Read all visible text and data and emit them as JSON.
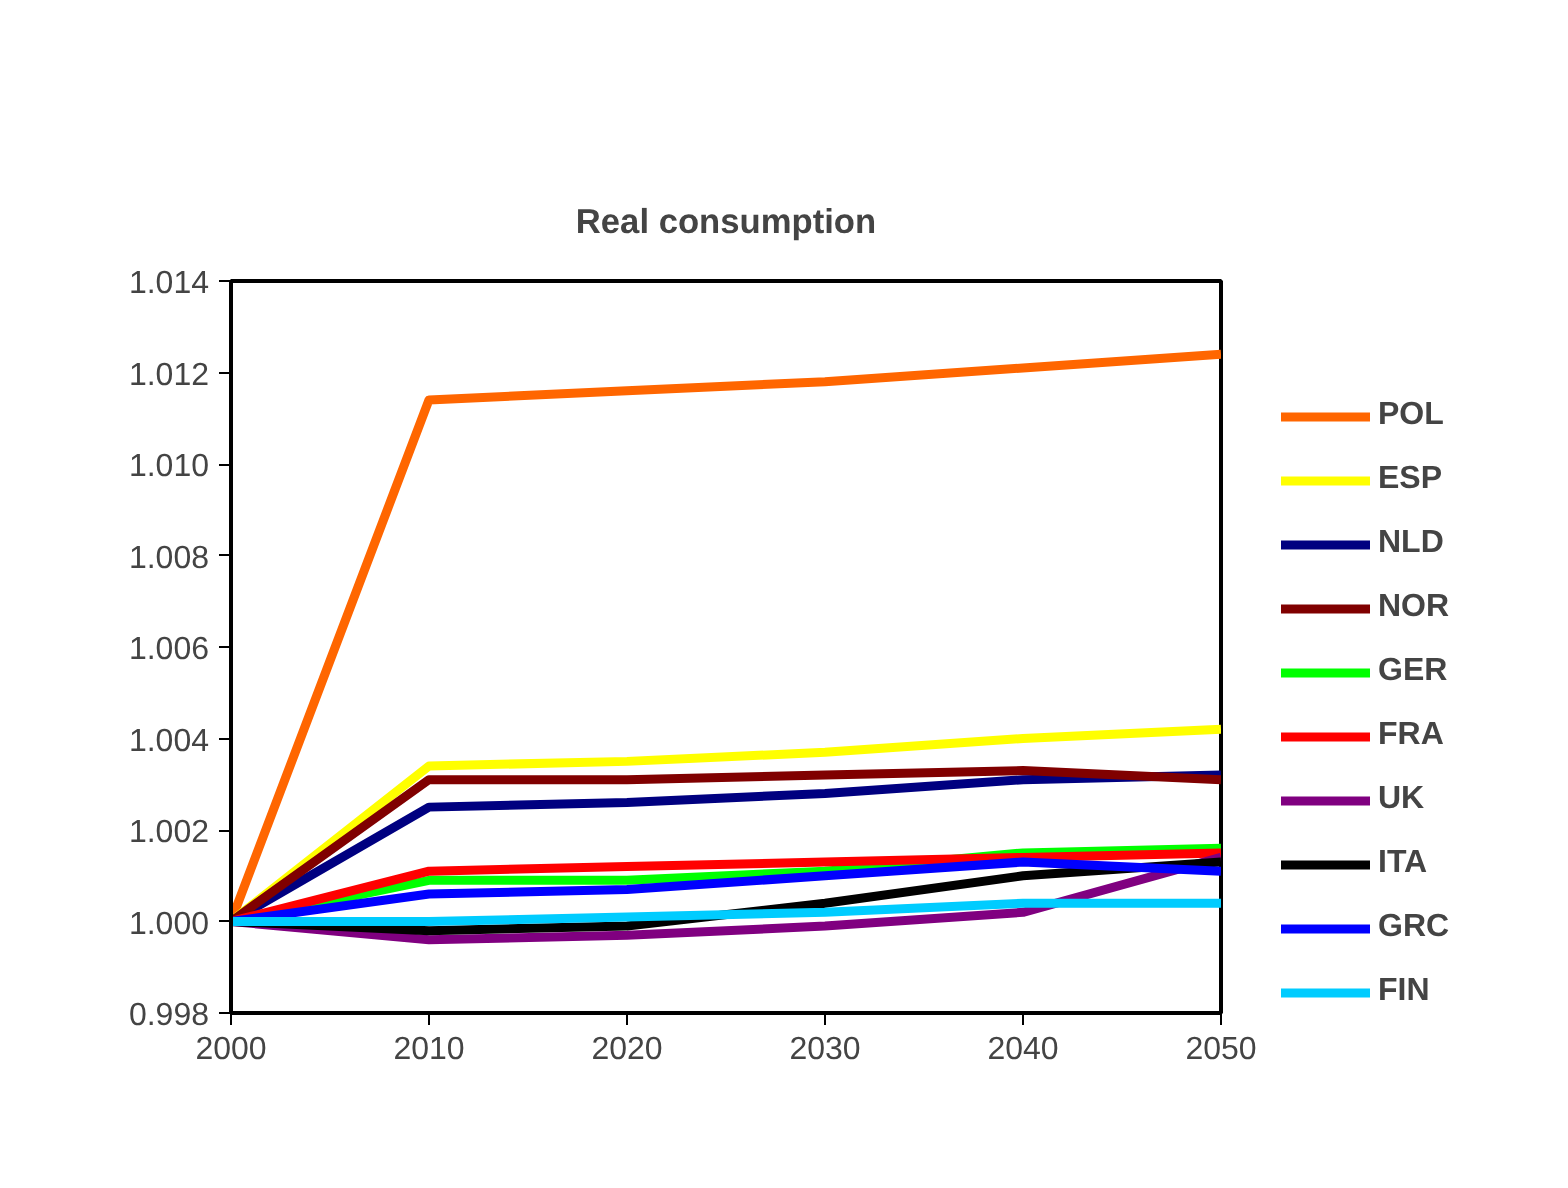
{
  "chart_data": {
    "type": "line",
    "title": "Real consumption",
    "x": [
      2000,
      2010,
      2020,
      2030,
      2040,
      2050
    ],
    "xlim": [
      2000,
      2050
    ],
    "xticks": [
      2000,
      2010,
      2020,
      2030,
      2040,
      2050
    ],
    "ylim": [
      0.998,
      1.014
    ],
    "yticks": [
      {
        "value": 0.998,
        "label": "0.998"
      },
      {
        "value": 1.0,
        "label": "1.000"
      },
      {
        "value": 1.002,
        "label": "1.002"
      },
      {
        "value": 1.004,
        "label": "1.004"
      },
      {
        "value": 1.006,
        "label": "1.006"
      },
      {
        "value": 1.008,
        "label": "1.008"
      },
      {
        "value": 1.01,
        "label": "1.010"
      },
      {
        "value": 1.012,
        "label": "1.012"
      },
      {
        "value": 1.014,
        "label": "1.014"
      }
    ],
    "grid": false,
    "legend": "right",
    "marker": "none",
    "line_style": "solid",
    "series": [
      {
        "name": "POL",
        "color": "#ff6600",
        "values": [
          1.0,
          1.0114,
          1.0116,
          1.0118,
          1.0121,
          1.0124
        ]
      },
      {
        "name": "ESP",
        "color": "#ffff00",
        "values": [
          1.0,
          1.0034,
          1.0035,
          1.0037,
          1.004,
          1.0042
        ]
      },
      {
        "name": "NLD",
        "color": "#000080",
        "values": [
          1.0,
          1.0025,
          1.0026,
          1.0028,
          1.0031,
          1.0032
        ]
      },
      {
        "name": "NOR",
        "color": "#800000",
        "values": [
          1.0,
          1.0031,
          1.0031,
          1.0032,
          1.0033,
          1.0031
        ]
      },
      {
        "name": "GER",
        "color": "#00ff00",
        "values": [
          1.0,
          1.0009,
          1.0009,
          1.0011,
          1.0015,
          1.0016
        ]
      },
      {
        "name": "FRA",
        "color": "#ff0000",
        "values": [
          1.0,
          1.0011,
          1.0012,
          1.0013,
          1.0014,
          1.0015
        ]
      },
      {
        "name": "UK",
        "color": "#800080",
        "values": [
          1.0,
          0.9996,
          0.9997,
          0.9999,
          1.0002,
          1.0014
        ]
      },
      {
        "name": "ITA",
        "color": "#000000",
        "values": [
          1.0,
          0.9998,
          0.9999,
          1.0004,
          1.001,
          1.0013
        ]
      },
      {
        "name": "GRC",
        "color": "#0000ff",
        "values": [
          1.0,
          1.0006,
          1.0007,
          1.001,
          1.0013,
          1.0011
        ]
      },
      {
        "name": "FIN",
        "color": "#00ccff",
        "values": [
          1.0,
          1.0,
          1.0001,
          1.0002,
          1.0004,
          1.0004
        ]
      }
    ]
  }
}
